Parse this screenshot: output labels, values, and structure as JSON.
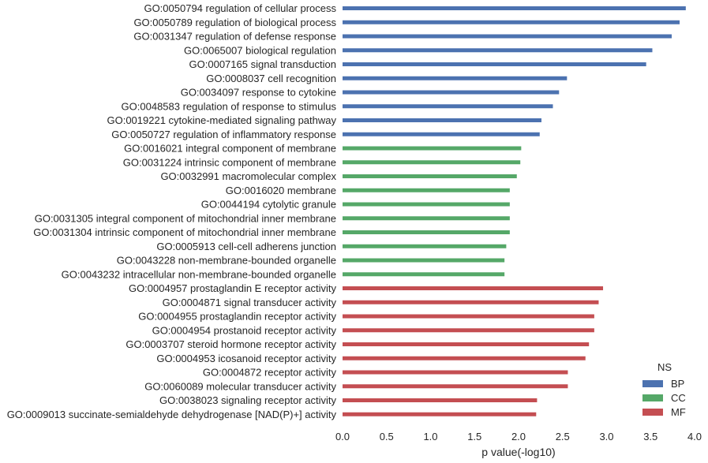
{
  "chart_data": {
    "type": "bar",
    "orientation": "horizontal",
    "categories": [
      "GO:0050794 regulation of cellular process",
      "GO:0050789 regulation of biological process",
      "GO:0031347 regulation of defense response",
      "GO:0065007 biological regulation",
      "GO:0007165 signal transduction",
      "GO:0008037 cell recognition",
      "GO:0034097 response to cytokine",
      "GO:0048583 regulation of response to stimulus",
      "GO:0019221 cytokine-mediated signaling pathway",
      "GO:0050727 regulation of inflammatory response",
      "GO:0016021 integral component of membrane",
      "GO:0031224 intrinsic component of membrane",
      "GO:0032991 macromolecular complex",
      "GO:0016020 membrane",
      "GO:0044194 cytolytic granule",
      "GO:0031305 integral component of mitochondrial inner membrane",
      "GO:0031304 intrinsic component of mitochondrial inner membrane",
      "GO:0005913 cell-cell adherens junction",
      "GO:0043228 non-membrane-bounded organelle",
      "GO:0043232 intracellular non-membrane-bounded organelle",
      "GO:0004957 prostaglandin E receptor activity",
      "GO:0004871 signal transducer activity",
      "GO:0004955 prostaglandin receptor activity",
      "GO:0004954 prostanoid receptor activity",
      "GO:0003707 steroid hormone receptor activity",
      "GO:0004953 icosanoid receptor activity",
      "GO:0004872 receptor activity",
      "GO:0060089 molecular transducer activity",
      "GO:0038023 signaling receptor activity",
      "GO:0009013 succinate-semialdehyde dehydrogenase [NAD(P)+] activity"
    ],
    "values": [
      3.9,
      3.83,
      3.74,
      3.52,
      3.45,
      2.55,
      2.46,
      2.39,
      2.26,
      2.24,
      2.03,
      2.02,
      1.98,
      1.9,
      1.9,
      1.9,
      1.9,
      1.86,
      1.84,
      1.84,
      2.96,
      2.91,
      2.86,
      2.86,
      2.8,
      2.76,
      2.56,
      2.56,
      2.21,
      2.2
    ],
    "groups": [
      "BP",
      "BP",
      "BP",
      "BP",
      "BP",
      "BP",
      "BP",
      "BP",
      "BP",
      "BP",
      "CC",
      "CC",
      "CC",
      "CC",
      "CC",
      "CC",
      "CC",
      "CC",
      "CC",
      "CC",
      "MF",
      "MF",
      "MF",
      "MF",
      "MF",
      "MF",
      "MF",
      "MF",
      "MF",
      "MF"
    ],
    "xlabel": "p value(-log10)",
    "ylabel": "",
    "xlim": [
      0.0,
      4.0
    ],
    "xticks": [
      "0.0",
      "0.5",
      "1.0",
      "1.5",
      "2.0",
      "2.5",
      "3.0",
      "3.5",
      "4.0"
    ],
    "grid": false,
    "legend": {
      "title": "NS",
      "placement": "bottom-right",
      "entries": [
        {
          "name": "BP",
          "color": "#4c72b0"
        },
        {
          "name": "CC",
          "color": "#55a868"
        },
        {
          "name": "MF",
          "color": "#c44e52"
        }
      ]
    }
  }
}
